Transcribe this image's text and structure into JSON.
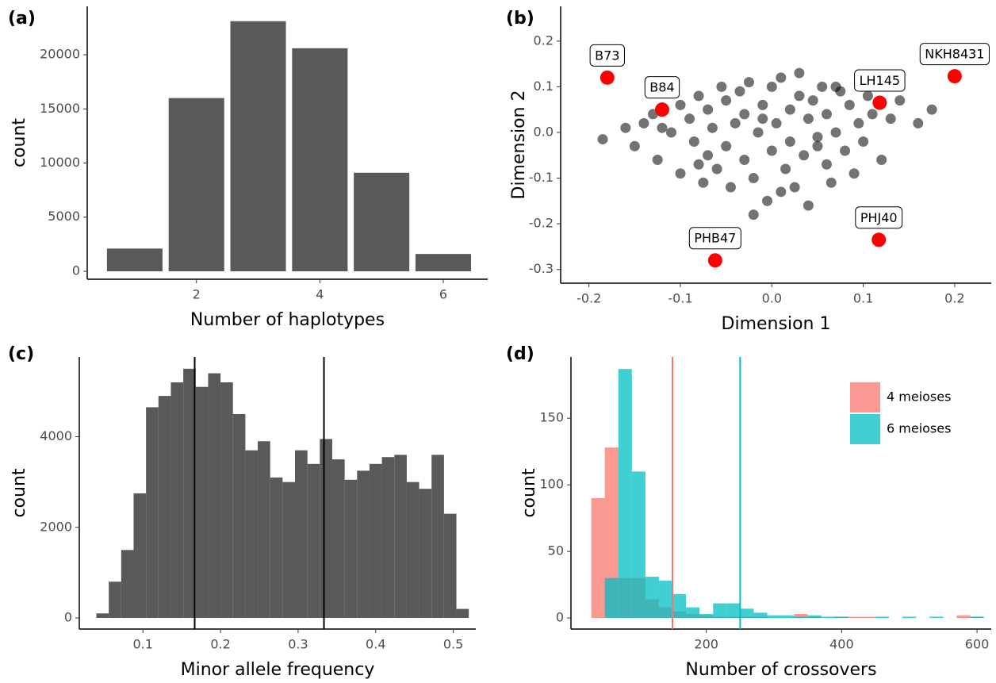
{
  "chart_data": [
    {
      "panel_label": "(a)",
      "type": "bar",
      "x_label": "Number of haplotypes",
      "y_label": "count",
      "x": [
        1,
        2,
        3,
        4,
        5,
        6
      ],
      "values": [
        2100,
        16000,
        23100,
        20600,
        9100,
        1600
      ],
      "color": "#595959",
      "xlim": [
        0.23,
        6.72
      ],
      "xticks": [
        2,
        4,
        6
      ],
      "ylim": [
        -733,
        24470
      ],
      "yticks": [
        0,
        5000,
        10000,
        15000,
        20000
      ]
    },
    {
      "panel_label": "(b)",
      "type": "scatter",
      "x_label": "Dimension 1",
      "y_label": "Dimension 2",
      "xlim": [
        -0.231,
        0.24
      ],
      "xticks": [
        -0.2,
        -0.1,
        {
          "value": 0,
          "label": "0.0"
        },
        0.1,
        0.2
      ],
      "ylim": [
        -0.33,
        0.276
      ],
      "yticks": [
        -0.3,
        -0.2,
        -0.1,
        {
          "value": 0,
          "label": "0.0"
        },
        0.1,
        0.2
      ],
      "series": [
        {
          "color": "#000000",
          "x": [
            -0.185,
            -0.16,
            -0.15,
            -0.14,
            -0.13,
            -0.125,
            -0.11,
            -0.1,
            -0.1,
            -0.09,
            -0.085,
            -0.08,
            -0.075,
            -0.07,
            -0.07,
            -0.065,
            -0.06,
            -0.055,
            -0.05,
            -0.05,
            -0.045,
            -0.04,
            -0.035,
            -0.03,
            -0.03,
            -0.025,
            -0.02,
            -0.015,
            -0.01,
            -0.005,
            0,
            0,
            0.005,
            0.01,
            0.015,
            0.02,
            0.02,
            0.025,
            0.03,
            0.035,
            0.04,
            0.04,
            0.045,
            0.05,
            0.055,
            0.06,
            0.06,
            0.065,
            0.07,
            0.075,
            0.08,
            0.085,
            0.09,
            0.095,
            0.1,
            0.105,
            0.11,
            0.12,
            0.13,
            0.14,
            0.16,
            0.175,
            -0.02,
            0.01,
            -0.08,
            0.03,
            -0.01,
            0.05,
            -0.12,
            0.07
          ],
          "values": [
            -0.015,
            0.01,
            -0.03,
            0.02,
            0.04,
            -0.06,
            0,
            0.06,
            -0.09,
            0.03,
            -0.02,
            0.08,
            -0.11,
            0.05,
            -0.05,
            0.01,
            -0.08,
            0.1,
            -0.03,
            0.07,
            -0.12,
            0.02,
            0.09,
            -0.06,
            0.04,
            0.11,
            -0.1,
            0,
            0.06,
            -0.15,
            0.1,
            -0.04,
            0.02,
            0.12,
            -0.08,
            0.05,
            -0.02,
            -0.12,
            0.08,
            -0.05,
            0.03,
            -0.16,
            0.07,
            -0.01,
            0.1,
            -0.07,
            0.04,
            -0.11,
            0,
            0.09,
            -0.04,
            0.06,
            -0.09,
            0.02,
            -0.02,
            0.08,
            0.04,
            -0.06,
            0.03,
            0.07,
            0.02,
            0.05,
            -0.18,
            -0.13,
            -0.07,
            0.13,
            0.03,
            -0.03,
            0.01,
            0.1
          ]
        },
        {
          "color": "#ff0000",
          "x": [
            -0.18,
            -0.12,
            0.118,
            0.2,
            0.117,
            -0.062
          ],
          "values": [
            0.12,
            0.05,
            0.065,
            0.123,
            -0.235,
            -0.28
          ],
          "labels": [
            "B73",
            "B84",
            "LH145",
            "NKH8431",
            "PHJ40",
            "PHB47"
          ]
        }
      ]
    },
    {
      "panel_label": "(c)",
      "type": "histogram",
      "x_label": "Minor allele frequency",
      "y_label": "count",
      "bins": [
        0.04,
        0.056,
        0.072,
        0.088,
        0.104,
        0.12,
        0.136,
        0.152,
        0.168,
        0.184,
        0.2,
        0.216,
        0.232,
        0.248,
        0.264,
        0.28,
        0.296,
        0.312,
        0.328,
        0.344,
        0.36,
        0.376,
        0.392,
        0.408,
        0.424,
        0.44,
        0.456,
        0.472,
        0.488,
        0.504,
        0.52
      ],
      "values": [
        100,
        800,
        1500,
        2750,
        4650,
        4900,
        5200,
        5500,
        5100,
        5400,
        5200,
        4500,
        3700,
        3900,
        3100,
        3000,
        3700,
        3400,
        3950,
        3500,
        3050,
        3250,
        3400,
        3550,
        3600,
        3000,
        2850,
        3600,
        2300,
        200
      ],
      "color": "#595959",
      "vlines": [
        0.1667,
        0.3333
      ],
      "vline_color": "#000000",
      "xlim": [
        0.018,
        0.529
      ],
      "xticks": [
        0.1,
        0.2,
        0.3,
        0.4,
        0.5
      ],
      "ylim": [
        -245,
        5760
      ],
      "yticks": [
        0,
        2000,
        4000
      ]
    },
    {
      "panel_label": "(d)",
      "type": "histogram",
      "x_label": "Number of crossovers",
      "y_label": "count",
      "bins": [
        30,
        50,
        70,
        90,
        110,
        130,
        150,
        170,
        190,
        210,
        230,
        250,
        270,
        290,
        310,
        330,
        350,
        370,
        390,
        410,
        430,
        450,
        470,
        490,
        510,
        530,
        550,
        570,
        590,
        610,
        630
      ],
      "series": [
        {
          "name": "4 meioses",
          "color": "#F8766D",
          "vline": 150,
          "values": [
            90,
            128,
            30,
            30,
            14,
            8,
            5,
            3,
            2,
            1,
            1,
            1,
            1,
            0,
            0,
            3,
            1,
            0,
            1,
            1,
            1,
            0,
            0,
            0,
            0,
            0,
            0,
            2,
            1,
            0
          ]
        },
        {
          "name": "6 meioses",
          "color": "#00BFC4",
          "vline": 250,
          "values": [
            0,
            30,
            187,
            110,
            31,
            28,
            18,
            8,
            3,
            11,
            11,
            7,
            4,
            2,
            2,
            1,
            2,
            1,
            1,
            0,
            0,
            1,
            0,
            1,
            0,
            1,
            0,
            0,
            1,
            0
          ]
        }
      ],
      "legend": "top-right",
      "xlim": [
        0,
        621
      ],
      "xticks": [
        200,
        400,
        600
      ],
      "ylim": [
        -8.3,
        196
      ],
      "yticks": [
        0,
        50,
        100,
        150
      ]
    }
  ]
}
